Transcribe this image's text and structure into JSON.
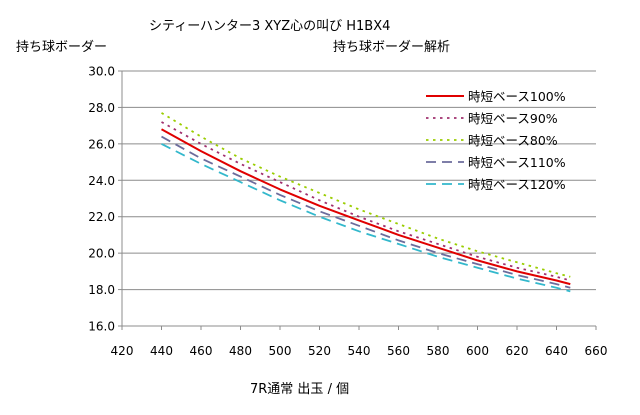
{
  "chart_data": {
    "type": "line",
    "title": "シティーハンター3 XYZ心の叫び H1BX4",
    "subtitle": "持ち球ボーダー解析",
    "ylabel": "持ち球ボーダー",
    "xlabel": "7R通常 出玉 / 個",
    "xlim": [
      420,
      660
    ],
    "ylim": [
      16.0,
      30.0
    ],
    "xticks": [
      420,
      440,
      460,
      480,
      500,
      520,
      540,
      560,
      580,
      600,
      620,
      640,
      660
    ],
    "yticks": [
      "16.0",
      "18.0",
      "20.0",
      "22.0",
      "24.0",
      "26.0",
      "28.0",
      "30.0"
    ],
    "grid": "horizontal",
    "legend_position": "top-right",
    "x": [
      440,
      460,
      480,
      500,
      520,
      540,
      560,
      580,
      600,
      620,
      640,
      647
    ],
    "series": [
      {
        "name": "時短ベース100%",
        "color": "#e00000",
        "dash": "solid",
        "values": [
          26.8,
          25.6,
          24.5,
          23.5,
          22.6,
          21.8,
          21.0,
          20.3,
          19.6,
          19.0,
          18.5,
          18.3
        ]
      },
      {
        "name": "時短ベース90%",
        "color": "#a0306e",
        "dash": "dotted",
        "values": [
          27.2,
          26.0,
          24.9,
          23.9,
          22.9,
          22.0,
          21.2,
          20.5,
          19.8,
          19.2,
          18.7,
          18.5
        ]
      },
      {
        "name": "時短ベース80%",
        "color": "#9acd00",
        "dash": "dotted",
        "values": [
          27.7,
          26.4,
          25.2,
          24.2,
          23.3,
          22.4,
          21.6,
          20.8,
          20.1,
          19.5,
          18.9,
          18.7
        ]
      },
      {
        "name": "時短ベース110%",
        "color": "#6c6c9c",
        "dash": "dashed",
        "values": [
          26.4,
          25.2,
          24.2,
          23.2,
          22.3,
          21.5,
          20.7,
          20.0,
          19.4,
          18.8,
          18.3,
          18.1
        ]
      },
      {
        "name": "時短ベース120%",
        "color": "#33b8cc",
        "dash": "dashed",
        "values": [
          26.0,
          24.9,
          23.9,
          22.9,
          22.0,
          21.2,
          20.5,
          19.8,
          19.2,
          18.6,
          18.1,
          17.9
        ]
      }
    ]
  }
}
